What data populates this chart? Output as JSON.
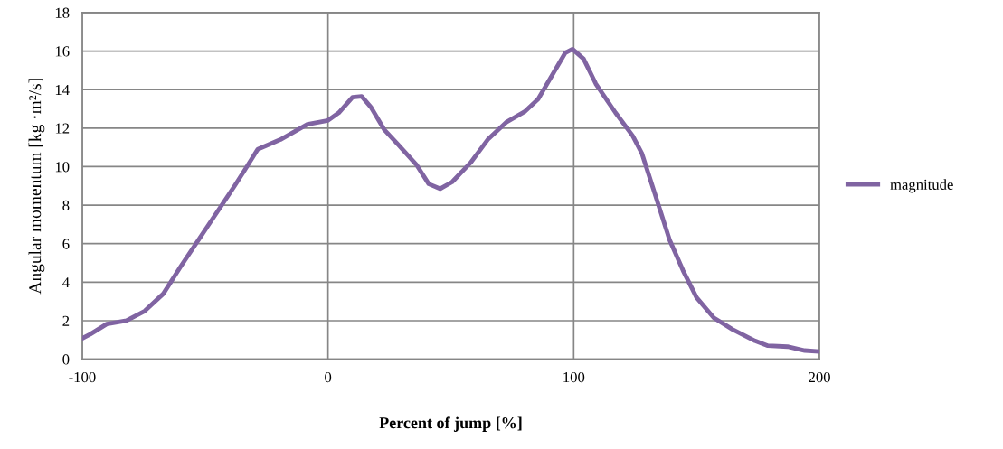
{
  "chart_data": {
    "type": "line",
    "xlabel": "Percent of jump [%]",
    "ylabel": "Angular momentum [kg ·m²/s]",
    "xlim": [
      -100,
      200
    ],
    "xticks": [
      -100,
      0,
      100,
      200
    ],
    "ylim": [
      0,
      18
    ],
    "yticks": [
      0,
      2,
      4,
      6,
      8,
      10,
      12,
      14,
      16,
      18
    ],
    "grid": true,
    "legend": "right",
    "marker": "none",
    "line_style": "solid",
    "series": [
      {
        "name": "magnitude",
        "color": "#8064a2",
        "x": [
          -100,
          -96.7,
          -90,
          -82,
          -74.6,
          -67,
          -60,
          -49,
          -38,
          -34,
          -28.6,
          -19.4,
          -8.4,
          0,
          4.4,
          10,
          13.7,
          17.4,
          23,
          28.5,
          36,
          41,
          45.7,
          50.5,
          58,
          65,
          72.5,
          80,
          85.5,
          91,
          96.5,
          99.5,
          104,
          109,
          117,
          124,
          127.7,
          133,
          139,
          144.5,
          150,
          157,
          164.6,
          173.8,
          179,
          187,
          194,
          200
        ],
        "values": [
          1.08,
          1.3,
          1.83,
          2.0,
          2.5,
          3.4,
          4.8,
          6.9,
          9.0,
          9.8,
          10.9,
          11.4,
          12.2,
          12.4,
          12.8,
          13.6,
          13.65,
          13.1,
          11.9,
          11.15,
          10.1,
          9.1,
          8.85,
          9.2,
          10.2,
          11.4,
          12.3,
          12.85,
          13.5,
          14.7,
          15.9,
          16.1,
          15.6,
          14.3,
          12.8,
          11.6,
          10.7,
          8.6,
          6.2,
          4.6,
          3.2,
          2.15,
          1.55,
          0.95,
          0.7,
          0.65,
          0.45,
          0.4
        ]
      }
    ]
  }
}
